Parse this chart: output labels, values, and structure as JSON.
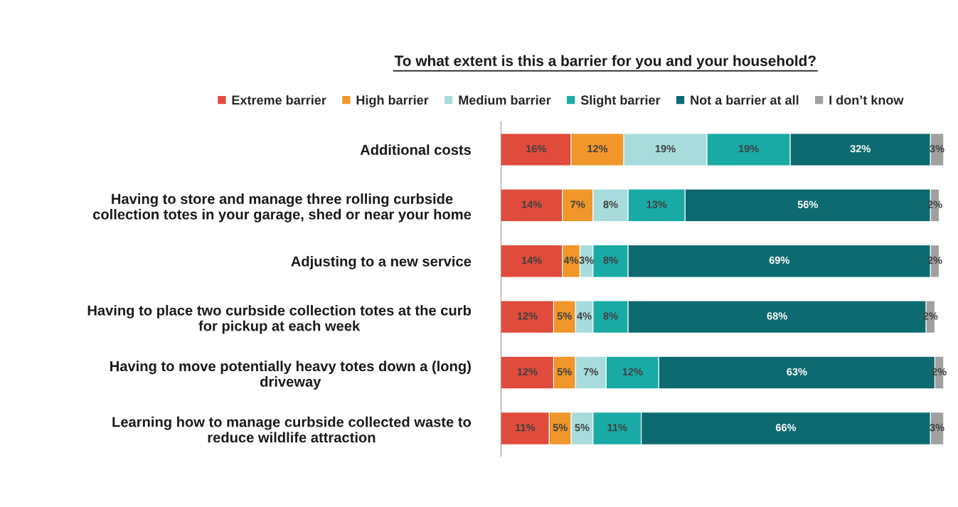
{
  "chart_data": {
    "type": "bar",
    "orientation": "horizontal",
    "stacked": true,
    "legend": "top",
    "grid": false,
    "title": "To what extent is this a barrier for you and your household?",
    "categories": [
      "Additional costs",
      "Having to store and manage three rolling curbside\ncollection totes in your garage, shed or near your home",
      "Adjusting to a new service",
      "Having to place two curbside collection totes at the curb\nfor pickup at each week",
      "Having to move potentially heavy totes down a (long)\ndriveway",
      "Learning how to manage curbside collected waste to\nreduce wildlife attraction"
    ],
    "series": [
      {
        "name": "Extreme barrier",
        "color": "#e04b3c",
        "values": [
          16,
          14,
          14,
          12,
          12,
          11
        ],
        "value_labels": [
          "16%",
          "14%",
          "14%",
          "12%",
          "12%",
          "11%"
        ]
      },
      {
        "name": "High barrier",
        "color": "#f0962a",
        "values": [
          12,
          7,
          4,
          5,
          5,
          5
        ],
        "value_labels": [
          "12%",
          "7%",
          "4%",
          "5%",
          "5%",
          "5%"
        ]
      },
      {
        "name": "Medium barrier",
        "color": "#a8dcdc",
        "values": [
          19,
          8,
          3,
          4,
          7,
          5
        ],
        "value_labels": [
          "19%",
          "8%",
          "3%",
          "4%",
          "7%",
          "5%"
        ]
      },
      {
        "name": "Slight barrier",
        "color": "#19aaa6",
        "values": [
          19,
          13,
          8,
          8,
          12,
          11
        ],
        "value_labels": [
          "19%",
          "13%",
          "8%",
          "8%",
          "12%",
          "11%"
        ]
      },
      {
        "name": "Not a barrier at all",
        "color": "#0e6a71",
        "values": [
          32,
          56,
          69,
          68,
          63,
          66
        ],
        "value_labels": [
          "32%",
          "56%",
          "69%",
          "68%",
          "63%",
          "66%"
        ]
      },
      {
        "name": "I don’t know",
        "color": "#a0a0a0",
        "values": [
          3,
          2,
          2,
          2,
          2,
          3
        ],
        "value_labels": [
          "3%",
          "2%",
          "2%",
          "2%",
          "2%",
          "3%"
        ]
      }
    ]
  }
}
